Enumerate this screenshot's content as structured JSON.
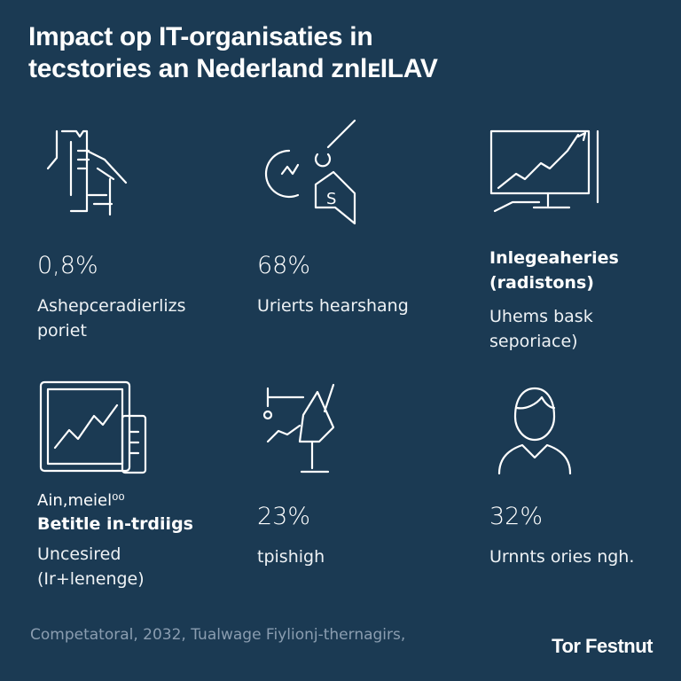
{
  "title": {
    "line1": "Impact op IT-organisaties in",
    "line2": "tecstories an Nederland znlᴇILAV"
  },
  "cards": [
    {
      "icon": "document-hand-icon",
      "value": "0,8%",
      "label": "Ashepceradierlizs poriet"
    },
    {
      "icon": "dollar-chart-icon",
      "value": "68%",
      "label": "Urierts hearshang"
    },
    {
      "icon": "monitor-growth-icon",
      "heading": "Inlegeaheries (radistons)",
      "label": "Uhems bask seporiace)"
    },
    {
      "icon": "tablet-chart-icon",
      "small": "Ain,meiel⁰⁰",
      "heading": "Betitle in-trdiigs",
      "label": "Uncesired (Ir+lenenge)"
    },
    {
      "icon": "microscope-chart-icon",
      "value": "23%",
      "label": "tpishigh"
    },
    {
      "icon": "user-icon",
      "value": "32%",
      "label": "Urnnts ories ngh."
    }
  ],
  "footer": {
    "source": "Competatoral, 2032, Tualwage Fiylionj-thernagirs,",
    "brand": "Tor Festnut"
  },
  "colors": {
    "background": "#1b3a53",
    "text": "#ffffff",
    "footer": "#8a9db0"
  }
}
